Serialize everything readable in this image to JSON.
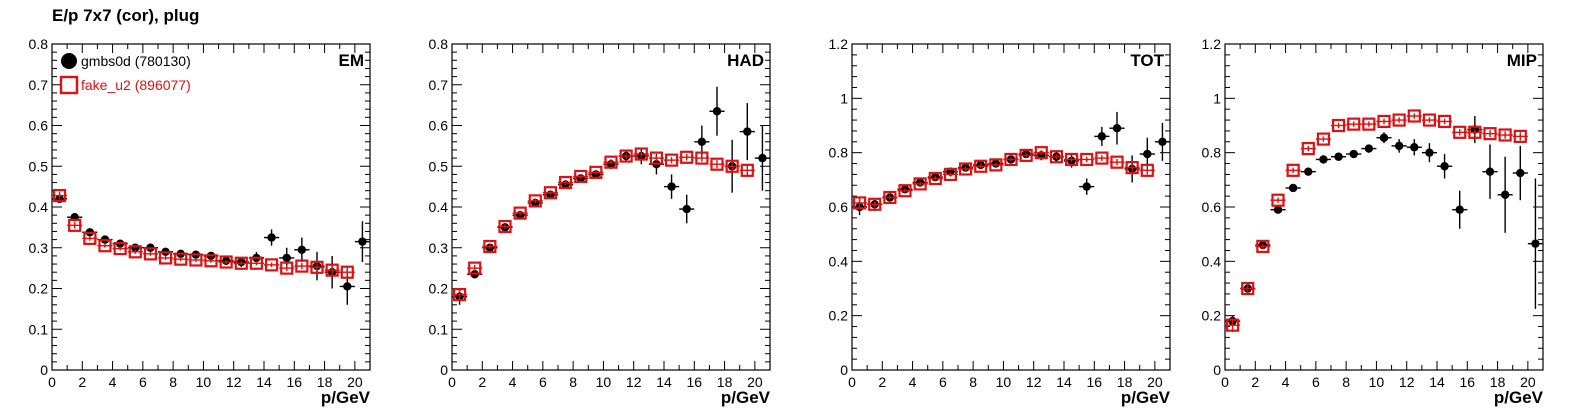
{
  "header": {
    "title": "E/p 7x7 (cor), plug"
  },
  "colors": {
    "gmbs0d": "#000000",
    "fake_u2": "#dd1111"
  },
  "chart_data": [
    {
      "type": "scatter",
      "panel_label": "EM",
      "xlabel": "p/GeV",
      "xlim": [
        0,
        21
      ],
      "ylim": [
        0,
        0.8
      ],
      "xticks": [
        0,
        2,
        4,
        6,
        8,
        10,
        12,
        14,
        16,
        18,
        20
      ],
      "yticks": [
        0,
        0.1,
        0.2,
        0.3,
        0.4,
        0.5,
        0.6,
        0.7,
        0.8
      ],
      "yticklabels": [
        "0",
        "0.1",
        "0.2",
        "0.3",
        "0.4",
        "0.5",
        "0.6",
        "0.7",
        "0.8"
      ],
      "legend": [
        {
          "label": "gmbs0d (780130)",
          "marker": "circle",
          "color": "#000000"
        },
        {
          "label": "fake_u2 (896077)",
          "marker": "open-square",
          "color": "#dd1111"
        }
      ],
      "series": [
        {
          "name": "gmbs0d (780130)",
          "marker": "circle",
          "x": [
            0.5,
            1.5,
            2.5,
            3.5,
            4.5,
            5.5,
            6.5,
            7.5,
            8.5,
            9.5,
            10.5,
            11.5,
            12.5,
            13.5,
            14.5,
            15.5,
            16.5,
            17.5,
            18.5,
            19.5,
            20.5
          ],
          "y": [
            0.42,
            0.375,
            0.338,
            0.32,
            0.31,
            0.3,
            0.3,
            0.29,
            0.285,
            0.283,
            0.28,
            0.268,
            0.265,
            0.275,
            0.325,
            0.275,
            0.295,
            0.255,
            0.24,
            0.205,
            0.315
          ],
          "yerr": [
            0.01,
            0.008,
            0.007,
            0.007,
            0.007,
            0.007,
            0.007,
            0.007,
            0.007,
            0.008,
            0.008,
            0.01,
            0.012,
            0.015,
            0.02,
            0.025,
            0.03,
            0.035,
            0.04,
            0.045,
            0.05
          ]
        },
        {
          "name": "fake_u2 (896077)",
          "marker": "open-square",
          "x": [
            0.5,
            1.5,
            2.5,
            3.5,
            4.5,
            5.5,
            6.5,
            7.5,
            8.5,
            9.5,
            10.5,
            11.5,
            12.5,
            13.5,
            14.5,
            15.5,
            16.5,
            17.5,
            18.5,
            19.5
          ],
          "y": [
            0.428,
            0.355,
            0.323,
            0.305,
            0.298,
            0.29,
            0.285,
            0.275,
            0.272,
            0.27,
            0.268,
            0.265,
            0.262,
            0.262,
            0.258,
            0.25,
            0.255,
            0.252,
            0.245,
            0.24
          ],
          "yerr": [
            0.01,
            0.008,
            0.006,
            0.005,
            0.005,
            0.005,
            0.005,
            0.005,
            0.005,
            0.005,
            0.005,
            0.005,
            0.005,
            0.005,
            0.006,
            0.007,
            0.008,
            0.009,
            0.01,
            0.012
          ]
        }
      ]
    },
    {
      "type": "scatter",
      "panel_label": "HAD",
      "xlabel": "p/GeV",
      "xlim": [
        0,
        21
      ],
      "ylim": [
        0,
        0.8
      ],
      "xticks": [
        0,
        2,
        4,
        6,
        8,
        10,
        12,
        14,
        16,
        18,
        20
      ],
      "yticks": [
        0,
        0.1,
        0.2,
        0.3,
        0.4,
        0.5,
        0.6,
        0.7,
        0.8
      ],
      "yticklabels": [
        "0",
        "0.1",
        "0.2",
        "0.3",
        "0.4",
        "0.5",
        "0.6",
        "0.7",
        "0.8"
      ],
      "series": [
        {
          "name": "gmbs0d (780130)",
          "marker": "circle",
          "x": [
            0.5,
            1.5,
            2.5,
            3.5,
            4.5,
            5.5,
            6.5,
            7.5,
            8.5,
            9.5,
            10.5,
            11.5,
            12.5,
            13.5,
            14.5,
            15.5,
            16.5,
            17.5,
            18.5,
            19.5,
            20.5
          ],
          "y": [
            0.18,
            0.235,
            0.3,
            0.35,
            0.38,
            0.41,
            0.43,
            0.455,
            0.47,
            0.48,
            0.505,
            0.525,
            0.525,
            0.505,
            0.45,
            0.395,
            0.56,
            0.635,
            0.5,
            0.585,
            0.52
          ],
          "yerr": [
            0.02,
            0.01,
            0.008,
            0.008,
            0.008,
            0.008,
            0.008,
            0.008,
            0.009,
            0.01,
            0.012,
            0.015,
            0.02,
            0.025,
            0.03,
            0.035,
            0.04,
            0.06,
            0.065,
            0.07,
            0.08
          ]
        },
        {
          "name": "fake_u2 (896077)",
          "marker": "open-square",
          "x": [
            0.5,
            1.5,
            2.5,
            3.5,
            4.5,
            5.5,
            6.5,
            7.5,
            8.5,
            9.5,
            10.5,
            11.5,
            12.5,
            13.5,
            14.5,
            15.5,
            16.5,
            17.5,
            18.5,
            19.5
          ],
          "y": [
            0.185,
            0.25,
            0.303,
            0.352,
            0.385,
            0.415,
            0.435,
            0.46,
            0.475,
            0.485,
            0.51,
            0.525,
            0.53,
            0.52,
            0.515,
            0.522,
            0.52,
            0.505,
            0.5,
            0.49
          ],
          "yerr": [
            0.015,
            0.008,
            0.006,
            0.006,
            0.006,
            0.006,
            0.006,
            0.006,
            0.006,
            0.006,
            0.006,
            0.007,
            0.007,
            0.007,
            0.008,
            0.008,
            0.009,
            0.01,
            0.012,
            0.014
          ]
        }
      ]
    },
    {
      "type": "scatter",
      "panel_label": "TOT",
      "xlabel": "p/GeV",
      "xlim": [
        0,
        21
      ],
      "ylim": [
        0,
        1.2
      ],
      "xticks": [
        0,
        2,
        4,
        6,
        8,
        10,
        12,
        14,
        16,
        18,
        20
      ],
      "yticks": [
        0,
        0.2,
        0.4,
        0.6,
        0.8,
        1.0,
        1.2
      ],
      "yticklabels": [
        "0",
        "0.2",
        "0.4",
        "0.6",
        "0.8",
        "1",
        "1.2"
      ],
      "series": [
        {
          "name": "gmbs0d (780130)",
          "marker": "circle",
          "x": [
            0.5,
            1.5,
            2.5,
            3.5,
            4.5,
            5.5,
            6.5,
            7.5,
            8.5,
            9.5,
            10.5,
            11.5,
            12.5,
            13.5,
            14.5,
            15.5,
            16.5,
            17.5,
            18.5,
            19.5,
            20.5
          ],
          "y": [
            0.6,
            0.61,
            0.635,
            0.665,
            0.69,
            0.71,
            0.73,
            0.745,
            0.755,
            0.76,
            0.775,
            0.795,
            0.79,
            0.785,
            0.77,
            0.675,
            0.86,
            0.89,
            0.74,
            0.795,
            0.84
          ],
          "yerr": [
            0.03,
            0.015,
            0.01,
            0.01,
            0.01,
            0.01,
            0.01,
            0.01,
            0.01,
            0.01,
            0.012,
            0.015,
            0.018,
            0.02,
            0.025,
            0.03,
            0.035,
            0.06,
            0.05,
            0.06,
            0.07
          ]
        },
        {
          "name": "fake_u2 (896077)",
          "marker": "open-square",
          "x": [
            0.5,
            1.5,
            2.5,
            3.5,
            4.5,
            5.5,
            6.5,
            7.5,
            8.5,
            9.5,
            10.5,
            11.5,
            12.5,
            13.5,
            14.5,
            15.5,
            16.5,
            17.5,
            18.5,
            19.5
          ],
          "y": [
            0.615,
            0.61,
            0.635,
            0.66,
            0.685,
            0.705,
            0.72,
            0.74,
            0.75,
            0.755,
            0.775,
            0.79,
            0.8,
            0.785,
            0.775,
            0.775,
            0.78,
            0.765,
            0.745,
            0.735
          ],
          "yerr": [
            0.02,
            0.01,
            0.008,
            0.008,
            0.008,
            0.008,
            0.008,
            0.008,
            0.008,
            0.008,
            0.008,
            0.008,
            0.009,
            0.009,
            0.01,
            0.01,
            0.011,
            0.012,
            0.013,
            0.015
          ]
        }
      ]
    },
    {
      "type": "scatter",
      "panel_label": "MIP",
      "xlabel": "p/GeV",
      "xlim": [
        0,
        21
      ],
      "ylim": [
        0,
        1.2
      ],
      "xticks": [
        0,
        2,
        4,
        6,
        8,
        10,
        12,
        14,
        16,
        18,
        20
      ],
      "yticks": [
        0,
        0.2,
        0.4,
        0.6,
        0.8,
        1.0,
        1.2
      ],
      "yticklabels": [
        "0",
        "0.2",
        "0.4",
        "0.6",
        "0.8",
        "1",
        "1.2"
      ],
      "series": [
        {
          "name": "gmbs0d (780130)",
          "marker": "circle",
          "x": [
            0.5,
            1.5,
            2.5,
            3.5,
            4.5,
            5.5,
            6.5,
            7.5,
            8.5,
            9.5,
            10.5,
            11.5,
            12.5,
            13.5,
            14.5,
            15.5,
            16.5,
            17.5,
            18.5,
            19.5,
            20.5
          ],
          "y": [
            0.18,
            0.3,
            0.46,
            0.59,
            0.67,
            0.73,
            0.775,
            0.785,
            0.795,
            0.815,
            0.855,
            0.825,
            0.82,
            0.8,
            0.75,
            0.59,
            0.885,
            0.73,
            0.645,
            0.725,
            0.465
          ],
          "yerr": [
            0.02,
            0.015,
            0.012,
            0.01,
            0.01,
            0.01,
            0.01,
            0.012,
            0.013,
            0.015,
            0.02,
            0.025,
            0.03,
            0.035,
            0.045,
            0.07,
            0.05,
            0.1,
            0.14,
            0.1,
            0.24
          ]
        },
        {
          "name": "fake_u2 (896077)",
          "marker": "open-square",
          "x": [
            0.5,
            1.5,
            2.5,
            3.5,
            4.5,
            5.5,
            6.5,
            7.5,
            8.5,
            9.5,
            10.5,
            11.5,
            12.5,
            13.5,
            14.5,
            15.5,
            16.5,
            17.5,
            18.5,
            19.5
          ],
          "y": [
            0.165,
            0.3,
            0.455,
            0.625,
            0.735,
            0.815,
            0.85,
            0.9,
            0.905,
            0.905,
            0.915,
            0.92,
            0.935,
            0.92,
            0.915,
            0.875,
            0.875,
            0.87,
            0.865,
            0.86
          ],
          "yerr": [
            0.025,
            0.012,
            0.01,
            0.01,
            0.01,
            0.01,
            0.01,
            0.01,
            0.01,
            0.01,
            0.01,
            0.01,
            0.01,
            0.01,
            0.01,
            0.012,
            0.012,
            0.013,
            0.014,
            0.015
          ]
        }
      ]
    }
  ]
}
